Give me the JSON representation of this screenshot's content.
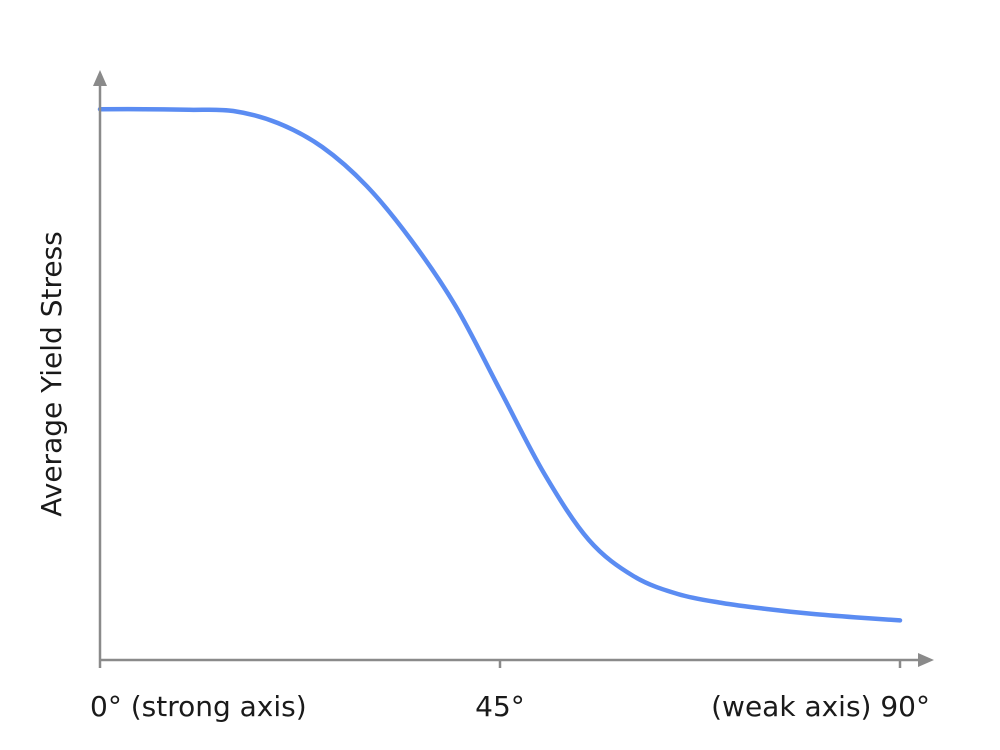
{
  "chart_data": {
    "type": "line",
    "title": "",
    "xlabel": "",
    "ylabel": "Average Yield Stress",
    "xlim": [
      0,
      90
    ],
    "ticks": [
      {
        "value": 0,
        "label": "0° (strong axis)"
      },
      {
        "value": 45,
        "label": "45°"
      },
      {
        "value": 90,
        "label": "(weak axis) 90°"
      }
    ],
    "series": [
      {
        "color": "#5b8cf2",
        "x": [
          0,
          5,
          10,
          15,
          20,
          25,
          30,
          35,
          40,
          45,
          50,
          55,
          60,
          65,
          70,
          75,
          80,
          85,
          90
        ],
        "y": [
          0.918,
          0.918,
          0.917,
          0.915,
          0.895,
          0.855,
          0.79,
          0.7,
          0.59,
          0.45,
          0.31,
          0.2,
          0.14,
          0.11,
          0.095,
          0.085,
          0.077,
          0.071,
          0.066
        ]
      }
    ],
    "grid": false,
    "legend": "none",
    "y_tick_labels": false
  }
}
